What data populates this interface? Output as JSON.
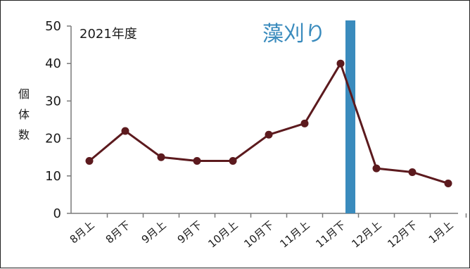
{
  "chart_data": {
    "type": "line",
    "title": "2021年度",
    "ylabel": "個体数",
    "xlabel": "",
    "ylim": [
      0,
      50
    ],
    "yticks": [
      0,
      10,
      20,
      30,
      40,
      50
    ],
    "categories": [
      "8月上",
      "8月下",
      "9月上",
      "9月下",
      "10月上",
      "10月下",
      "11月上",
      "11月下",
      "12月上",
      "12月下",
      "1月上"
    ],
    "values": [
      14,
      22,
      15,
      14,
      14,
      21,
      24,
      40,
      12,
      11,
      8
    ],
    "grid": false,
    "series_color": "#5c1a1e",
    "annotation": {
      "text": "藻刈り",
      "position_category_after": "11月下",
      "color": "#3a8bbd"
    }
  }
}
